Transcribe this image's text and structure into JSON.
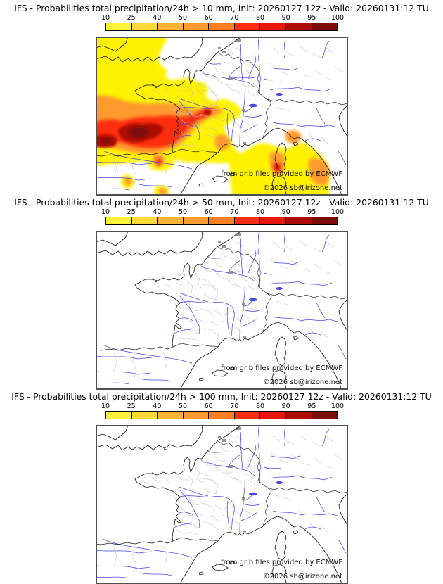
{
  "model": "IFS",
  "init": "20260127 12z",
  "valid": "20260131:12 TU",
  "panels": [
    {
      "threshold_mm": 10,
      "title": "IFS - Probabilities total precipitation/24h > 10 mm, Init: 20260127 12z - Valid: 20260131:12 TU"
    },
    {
      "threshold_mm": 50,
      "title": "IFS - Probabilities total precipitation/24h > 50 mm, Init: 20260127 12z - Valid: 20260131:12 TU"
    },
    {
      "threshold_mm": 100,
      "title": "IFS - Probabilities total precipitation/24h > 100 mm, Init: 20260127 12z - Valid: 20260131:12 TU"
    }
  ],
  "colorbar": {
    "unit": "%",
    "ticks": [
      "10",
      "25",
      "40",
      "50",
      "60",
      "70",
      "80",
      "90",
      "95",
      "100"
    ],
    "colors": [
      "#fff23a",
      "#ffd83a",
      "#ffb238",
      "#ff9a2e",
      "#ff7f22",
      "#ff2d10",
      "#e61709",
      "#ad0d06",
      "#7c0d0b"
    ]
  },
  "map": {
    "attribution_line1": "from grib files provided by ECMWF",
    "attribution_line2": "©2026 sb@irizone.net",
    "river_color": "#4747dd",
    "admin_color": "#c3c3c3",
    "coast_color": "#1c1c1c"
  }
}
